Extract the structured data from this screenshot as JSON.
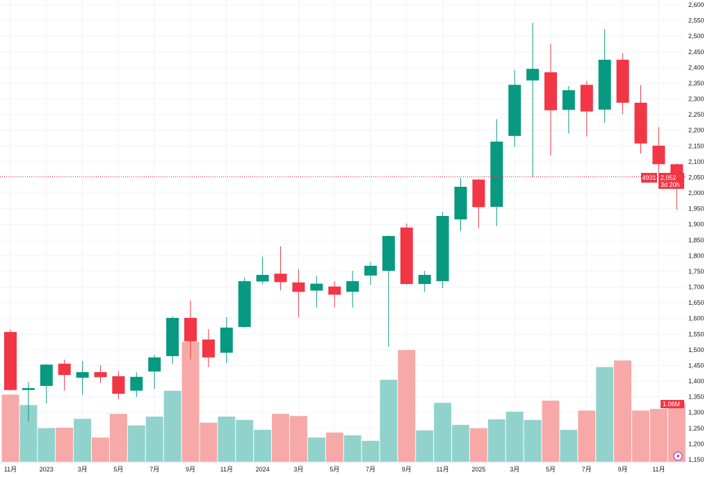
{
  "chart_data": {
    "type": "candlestick",
    "title": "",
    "x_labels": [
      "11月",
      "2023",
      "3月",
      "5月",
      "7月",
      "9月",
      "11月",
      "2024",
      "3月",
      "5月",
      "7月",
      "9月",
      "11月",
      "2025",
      "3月",
      "5月",
      "7月",
      "9月",
      "11月"
    ],
    "categories": [
      "2022-11",
      "2022-12",
      "2023-01",
      "2023-02",
      "2023-03",
      "2023-04",
      "2023-05",
      "2023-06",
      "2023-07",
      "2023-08",
      "2023-09",
      "2023-10",
      "2023-11",
      "2023-12",
      "2024-01",
      "2024-02",
      "2024-03",
      "2024-04",
      "2024-05",
      "2024-06",
      "2024-07",
      "2024-08",
      "2024-09",
      "2024-10",
      "2024-11",
      "2024-12",
      "2025-01",
      "2025-02",
      "2025-03",
      "2025-04",
      "2025-05",
      "2025-06",
      "2025-07",
      "2025-08",
      "2025-09",
      "2025-10",
      "2025-11",
      "2025-12"
    ],
    "open": [
      1557,
      1372,
      1385,
      1456,
      1411,
      1429,
      1416,
      1370,
      1431,
      1480,
      1602,
      1533,
      1491,
      1573,
      1718,
      1743,
      1715,
      1689,
      1702,
      1685,
      1737,
      1752,
      1890,
      1710,
      1719,
      1916,
      2043,
      1956,
      2182,
      2359,
      2385,
      2265,
      2345,
      2266,
      2425,
      2288,
      2151,
      2092
    ],
    "high": [
      1565,
      1398,
      1455,
      1469,
      1465,
      1451,
      1432,
      1428,
      1485,
      1607,
      1657,
      1566,
      1605,
      1730,
      1797,
      1830,
      1757,
      1735,
      1719,
      1752,
      1780,
      1865,
      1903,
      1752,
      1940,
      2047,
      2045,
      2235,
      2392,
      2543,
      2476,
      2341,
      2357,
      2523,
      2446,
      2345,
      2210,
      2095
    ],
    "low": [
      1370,
      1270,
      1330,
      1370,
      1357,
      1395,
      1343,
      1350,
      1375,
      1455,
      1470,
      1445,
      1458,
      1571,
      1710,
      1690,
      1605,
      1635,
      1635,
      1635,
      1708,
      1510,
      1708,
      1685,
      1697,
      1880,
      1888,
      1895,
      2147,
      2050,
      2120,
      2190,
      2180,
      2224,
      2252,
      2126,
      2055,
      1947
    ],
    "close": [
      1372,
      1378,
      1453,
      1420,
      1429,
      1413,
      1360,
      1414,
      1476,
      1602,
      1527,
      1476,
      1571,
      1719,
      1739,
      1716,
      1685,
      1711,
      1676,
      1719,
      1768,
      1863,
      1710,
      1739,
      1927,
      2020,
      1955,
      2164,
      2345,
      2396,
      2264,
      2328,
      2260,
      2425,
      2288,
      2158,
      2092,
      2052
    ],
    "volume_millions": [
      1.22,
      1.03,
      0.61,
      0.62,
      0.78,
      0.44,
      0.87,
      0.66,
      0.82,
      1.29,
      2.18,
      0.71,
      0.82,
      0.76,
      0.58,
      0.87,
      0.83,
      0.44,
      0.53,
      0.48,
      0.38,
      1.49,
      2.03,
      0.57,
      1.07,
      0.67,
      0.61,
      0.77,
      0.91,
      0.76,
      1.11,
      0.58,
      0.93,
      1.72,
      1.84,
      0.93,
      0.96,
      1.06
    ],
    "ylim": [
      1150,
      2600
    ],
    "y_ticks": [
      "2,600",
      "2,550",
      "2,500",
      "2,450",
      "2,400",
      "2,350",
      "2,300",
      "2,250",
      "2,200",
      "2,150",
      "2,100",
      "2,050",
      "2,000",
      "1,950",
      "1,900",
      "1,850",
      "1,800",
      "1,750",
      "1,700",
      "1,650",
      "1,600",
      "1,550",
      "1,500",
      "1,450",
      "1,400",
      "1,350",
      "1,300",
      "1,250",
      "1,200",
      "1,150"
    ],
    "y_tick_step": 50,
    "grid": true,
    "last_price": 2052,
    "last_price_label": "2,052",
    "countdown_label": "3d 20h",
    "price_tag_left": "4931",
    "volume_label": "1.06M",
    "colors": {
      "up": "#089981",
      "down": "#F23645",
      "vol_up": "#92D2CC",
      "vol_down": "#F7A9A7",
      "grid": "#F0F3FA"
    }
  }
}
